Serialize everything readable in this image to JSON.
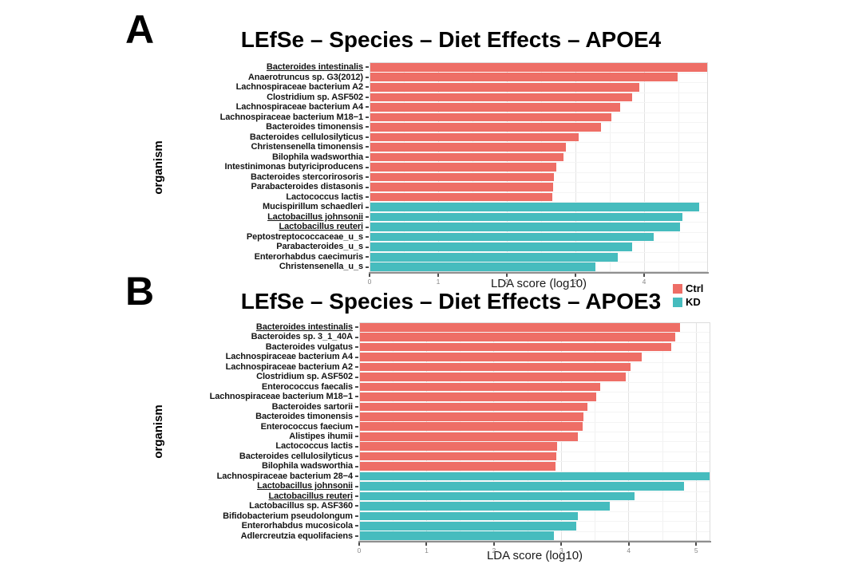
{
  "legend": {
    "items": [
      {
        "label": "Ctrl",
        "color": "#EE6E66"
      },
      {
        "label": "KD",
        "color": "#46BCBE"
      }
    ]
  },
  "colors": {
    "ctrl_bar": "#EE6E66",
    "kd_bar": "#46BCBE",
    "grid_major": "#e3e3e3",
    "grid_minor": "#f1f1f1",
    "panel_border": "#dcdcdc",
    "axis_line": "#8f8f8f"
  },
  "chart_data": [
    {
      "type": "bar",
      "panel": "A",
      "letter": "A",
      "title": "LEfSe – Species – Diet Effects – APOE4",
      "xlabel": "LDA score (log10)",
      "ylabel": "organism",
      "orientation": "horizontal",
      "xlim": [
        0,
        4.93
      ],
      "xticks": [
        0,
        1,
        2,
        3,
        4
      ],
      "grid": true,
      "series": [
        {
          "name": "Ctrl",
          "color": "#EE6E66",
          "bars": [
            {
              "organism": "Bacteroides intestinalis",
              "value": 4.93,
              "underline": true,
              "clipped": true
            },
            {
              "organism": "Anaerotruncus sp. G3(2012)",
              "value": 4.49
            },
            {
              "organism": "Lachnospiraceae bacterium A2",
              "value": 3.93
            },
            {
              "organism": "Clostridium sp. ASF502",
              "value": 3.83
            },
            {
              "organism": "Lachnospiraceae bacterium A4",
              "value": 3.65
            },
            {
              "organism": "Lachnospiraceae bacterium M18−1",
              "value": 3.52
            },
            {
              "organism": "Bacteroides timonensis",
              "value": 3.37
            },
            {
              "organism": "Bacteroides cellulosilyticus",
              "value": 3.05
            },
            {
              "organism": "Christensenella timonensis",
              "value": 2.86
            },
            {
              "organism": "Bilophila wadsworthia",
              "value": 2.83
            },
            {
              "organism": "Intestinimonas butyriciproducens",
              "value": 2.72
            },
            {
              "organism": "Bacteroides stercorirosoris",
              "value": 2.69
            },
            {
              "organism": "Parabacteroides distasonis",
              "value": 2.68
            },
            {
              "organism": "Lactococcus lactis",
              "value": 2.66
            }
          ]
        },
        {
          "name": "KD",
          "color": "#46BCBE",
          "bars": [
            {
              "organism": "Mucispirillum schaedleri",
              "value": 4.8
            },
            {
              "organism": "Lactobacillus johnsonii",
              "value": 4.56,
              "underline": true
            },
            {
              "organism": "Lactobacillus reuteri",
              "value": 4.52,
              "underline": true
            },
            {
              "organism": "Peptostreptococcaceae_u_s",
              "value": 4.14
            },
            {
              "organism": "Parabacteroides_u_s",
              "value": 3.83
            },
            {
              "organism": "Enterorhabdus caecimuris",
              "value": 3.62
            },
            {
              "organism": "Christensenella_u_s",
              "value": 3.29
            }
          ]
        }
      ]
    },
    {
      "type": "bar",
      "panel": "B",
      "letter": "B",
      "title": "LEfSe – Species – Diet Effects – APOE3",
      "xlabel": "LDA score (log10)",
      "ylabel": "organism",
      "orientation": "horizontal",
      "xlim": [
        0,
        5.21
      ],
      "xticks": [
        0,
        1,
        2,
        3,
        4,
        5
      ],
      "grid": true,
      "series": [
        {
          "name": "Ctrl",
          "color": "#EE6E66",
          "bars": [
            {
              "organism": "Bacteroides intestinalis",
              "value": 4.76,
              "underline": true
            },
            {
              "organism": "Bacteroides sp. 3_1_40A",
              "value": 4.69
            },
            {
              "organism": "Bacteroides vulgatus",
              "value": 4.63
            },
            {
              "organism": "Lachnospiraceae bacterium A4",
              "value": 4.19
            },
            {
              "organism": "Lachnospiraceae bacterium A2",
              "value": 4.02
            },
            {
              "organism": "Clostridium sp. ASF502",
              "value": 3.95
            },
            {
              "organism": "Enterococcus faecalis",
              "value": 3.58
            },
            {
              "organism": "Lachnospiraceae bacterium M18−1",
              "value": 3.52
            },
            {
              "organism": "Bacteroides sartorii",
              "value": 3.39
            },
            {
              "organism": "Bacteroides timonensis",
              "value": 3.33
            },
            {
              "organism": "Enterococcus faecium",
              "value": 3.31
            },
            {
              "organism": "Alistipes ihumii",
              "value": 3.25
            },
            {
              "organism": "Lactococcus lactis",
              "value": 2.94
            },
            {
              "organism": "Bacteroides cellulosilyticus",
              "value": 2.93
            },
            {
              "organism": "Bilophila wadsworthia",
              "value": 2.91
            }
          ]
        },
        {
          "name": "KD",
          "color": "#46BCBE",
          "bars": [
            {
              "organism": "Lachnospiraceae bacterium 28−4",
              "value": 5.21,
              "clipped": true
            },
            {
              "organism": "Lactobacillus johnsonii",
              "value": 4.82,
              "underline": true
            },
            {
              "organism": "Lactobacillus reuteri",
              "value": 4.09,
              "underline": true
            },
            {
              "organism": "Lactobacillus sp. ASF360",
              "value": 3.72
            },
            {
              "organism": "Bifidobacterium pseudolongum",
              "value": 3.25
            },
            {
              "organism": "Enterorhabdus mucosicola",
              "value": 3.22
            },
            {
              "organism": "Adlercreutzia equolifaciens",
              "value": 2.89
            }
          ]
        }
      ]
    }
  ]
}
